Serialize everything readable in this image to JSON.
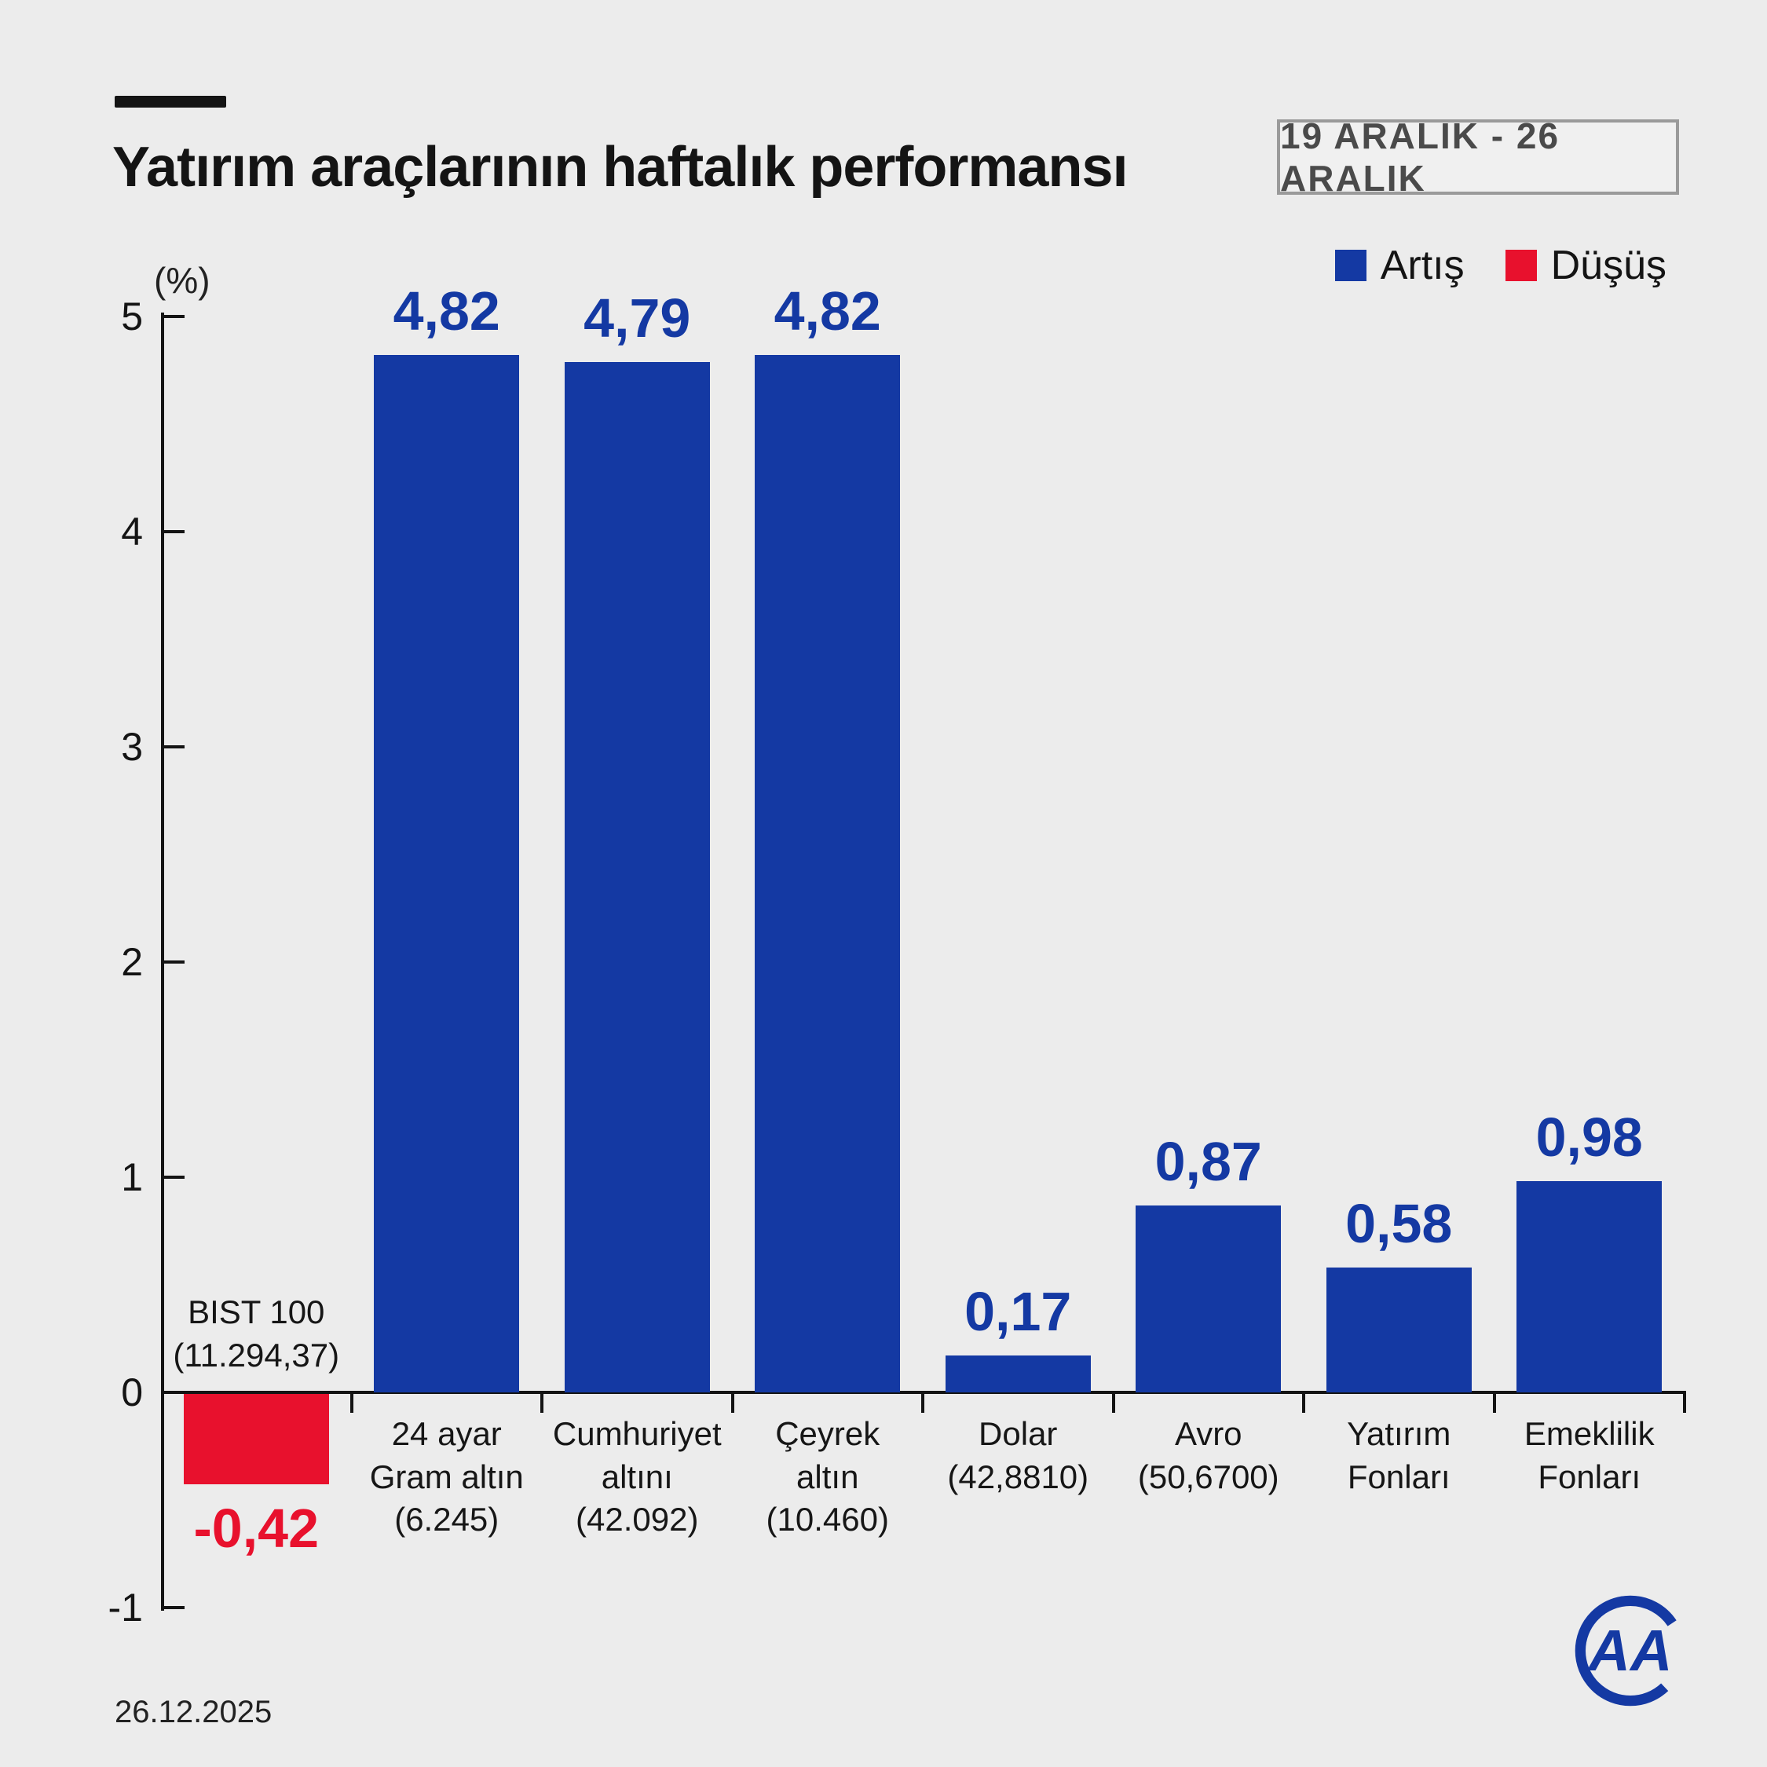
{
  "header": {
    "title": "Yatırım araçlarının haftalık performansı",
    "period": "19 ARALIK - 26 ARALIK"
  },
  "legend": {
    "increase": "Artış",
    "decrease": "Düşüş"
  },
  "colors": {
    "increase": "#1439a3",
    "decrease": "#e8112d",
    "background": "#ececec"
  },
  "chart_data": {
    "type": "bar",
    "title": "Yatırım araçlarının haftalık performansı",
    "period": "19 ARALIK - 26 ARALIK",
    "unit_label": "(%)",
    "ylabel": "%",
    "ylim": [
      -1,
      5
    ],
    "yticks": [
      5,
      4,
      3,
      2,
      1,
      0,
      -1
    ],
    "grid": false,
    "legend_position": "top-right",
    "bars": [
      {
        "label": "BIST 100\n(11.294,37)",
        "value": -0.42,
        "value_label": "-0,42",
        "direction": "decrease"
      },
      {
        "label": "24 ayar\nGram altın\n(6.245)",
        "value": 4.82,
        "value_label": "4,82",
        "direction": "increase"
      },
      {
        "label": "Cumhuriyet\naltını\n(42.092)",
        "value": 4.79,
        "value_label": "4,79",
        "direction": "increase"
      },
      {
        "label": "Çeyrek\naltın\n(10.460)",
        "value": 4.82,
        "value_label": "4,82",
        "direction": "increase"
      },
      {
        "label": "Dolar\n(42,8810)",
        "value": 0.17,
        "value_label": "0,17",
        "direction": "increase"
      },
      {
        "label": "Avro\n(50,6700)",
        "value": 0.87,
        "value_label": "0,87",
        "direction": "increase"
      },
      {
        "label": "Yatırım\nFonları",
        "value": 0.58,
        "value_label": "0,58",
        "direction": "increase"
      },
      {
        "label": "Emeklilik\nFonları",
        "value": 0.98,
        "value_label": "0,98",
        "direction": "increase"
      }
    ]
  },
  "footer": {
    "date": "26.12.2025",
    "agency_logo": "AA"
  }
}
